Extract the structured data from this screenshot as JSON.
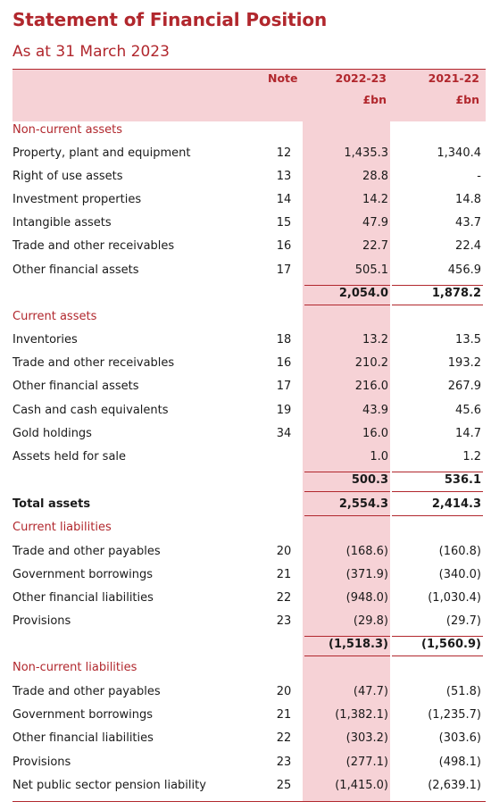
{
  "title": "Statement of Financial Position",
  "subtitle": "As at 31 March 2023",
  "header": {
    "note": "Note",
    "col1": "2022-23",
    "col2": "2021-22",
    "unit1": "£bn",
    "unit2": "£bn"
  },
  "rows": [
    {
      "label": "Non-current assets",
      "kind": "section"
    },
    {
      "label": "Property, plant and equipment",
      "note": "12",
      "v1": "1,435.3",
      "v2": "1,340.4"
    },
    {
      "label": "Right of use assets",
      "note": "13",
      "v1": "28.8",
      "v2": "-"
    },
    {
      "label": "Investment properties",
      "note": "14",
      "v1": "14.2",
      "v2": "14.8"
    },
    {
      "label": "Intangible assets",
      "note": "15",
      "v1": "47.9",
      "v2": "43.7"
    },
    {
      "label": "Trade and other receivables",
      "note": "16",
      "v1": "22.7",
      "v2": "22.4"
    },
    {
      "label": "Other financial assets",
      "note": "17",
      "v1": "505.1",
      "v2": "456.9"
    },
    {
      "label": "",
      "kind": "subtotal",
      "v1": "2,054.0",
      "v2": "1,878.2"
    },
    {
      "label": "Current assets",
      "kind": "section"
    },
    {
      "label": "Inventories",
      "note": "18",
      "v1": "13.2",
      "v2": "13.5"
    },
    {
      "label": "Trade and other receivables",
      "note": "16",
      "v1": "210.2",
      "v2": "193.2"
    },
    {
      "label": "Other financial assets",
      "note": "17",
      "v1": "216.0",
      "v2": "267.9"
    },
    {
      "label": "Cash and cash equivalents",
      "note": "19",
      "v1": "43.9",
      "v2": "45.6"
    },
    {
      "label": "Gold holdings",
      "note": "34",
      "v1": "16.0",
      "v2": "14.7"
    },
    {
      "label": "Assets held for sale",
      "note": "",
      "v1": "1.0",
      "v2": "1.2"
    },
    {
      "label": "",
      "kind": "subtotal",
      "v1": "500.3",
      "v2": "536.1"
    },
    {
      "label": "Total assets",
      "kind": "total",
      "v1": "2,554.3",
      "v2": "2,414.3"
    },
    {
      "label": "Current liabilities",
      "kind": "section"
    },
    {
      "label": "Trade and other payables",
      "note": "20",
      "v1": "(168.6)",
      "v2": "(160.8)"
    },
    {
      "label": "Government borrowings",
      "note": "21",
      "v1": "(371.9)",
      "v2": "(340.0)"
    },
    {
      "label": "Other financial liabilities",
      "note": "22",
      "v1": "(948.0)",
      "v2": "(1,030.4)"
    },
    {
      "label": "Provisions",
      "note": "23",
      "v1": "(29.8)",
      "v2": "(29.7)"
    },
    {
      "label": "",
      "kind": "subtotal",
      "v1": "(1,518.3)",
      "v2": "(1,560.9)"
    },
    {
      "label": "Non-current liabilities",
      "kind": "section"
    },
    {
      "label": "Trade and other payables",
      "note": "20",
      "v1": "(47.7)",
      "v2": "(51.8)"
    },
    {
      "label": "Government borrowings",
      "note": "21",
      "v1": "(1,382.1)",
      "v2": "(1,235.7)"
    },
    {
      "label": "Other financial liabilities",
      "note": "22",
      "v1": "(303.2)",
      "v2": "(303.6)"
    },
    {
      "label": "Provisions",
      "note": "23",
      "v1": "(277.1)",
      "v2": "(498.1)"
    },
    {
      "label": "Net public sector pension liability",
      "note": "25",
      "v1": "(1,415.0)",
      "v2": "(2,639.1)"
    }
  ]
}
